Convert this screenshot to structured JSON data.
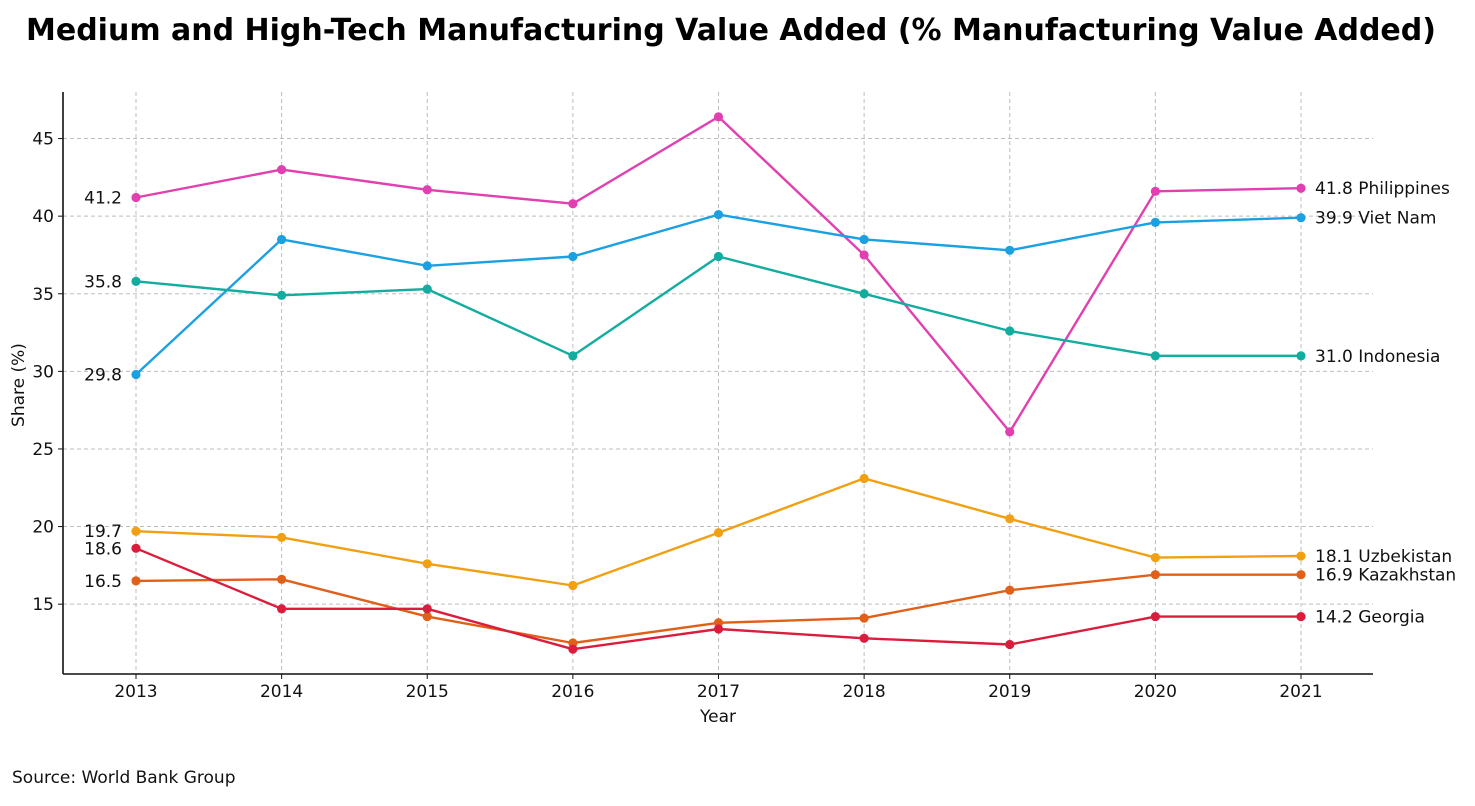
{
  "chart_data": {
    "type": "line",
    "title": "Medium and High-Tech Manufacturing Value Added (% Manufacturing Value Added)",
    "xlabel": "Year",
    "ylabel": "Share (%)",
    "x": [
      "2013",
      "2014",
      "2015",
      "2016",
      "2017",
      "2018",
      "2019",
      "2020",
      "2021"
    ],
    "ylim": [
      10.5,
      48
    ],
    "yticks": [
      15,
      20,
      25,
      30,
      35,
      40,
      45
    ],
    "grid": true,
    "legend": "none",
    "series": [
      {
        "name": "Philippines",
        "color": "#e040b0",
        "values": [
          41.2,
          43.0,
          41.7,
          40.8,
          46.4,
          37.5,
          26.1,
          41.6,
          41.8
        ],
        "start_label": "41.2",
        "end_label": "41.8 Philippines"
      },
      {
        "name": "Viet Nam",
        "color": "#1ba1e2",
        "values": [
          29.8,
          38.5,
          36.8,
          37.4,
          40.1,
          38.5,
          37.8,
          39.6,
          39.9
        ],
        "start_label": "29.8",
        "end_label": "39.9 Viet Nam"
      },
      {
        "name": "Indonesia",
        "color": "#12ad9f",
        "values": [
          35.8,
          34.9,
          35.3,
          31.0,
          37.4,
          35.0,
          32.6,
          31.0,
          31.0
        ],
        "start_label": "35.8",
        "end_label": "31.0 Indonesia"
      },
      {
        "name": "Uzbekistan",
        "color": "#f0a010",
        "values": [
          19.7,
          19.3,
          17.6,
          16.2,
          19.6,
          23.1,
          20.5,
          18.0,
          18.1
        ],
        "start_label": "19.7",
        "end_label": "18.1 Uzbekistan"
      },
      {
        "name": "Kazakhstan",
        "color": "#e0601a",
        "values": [
          16.5,
          16.6,
          14.2,
          12.5,
          13.8,
          14.1,
          15.9,
          16.9,
          16.9
        ],
        "start_label": "16.5",
        "end_label": "16.9 Kazakhstan"
      },
      {
        "name": "Georgia",
        "color": "#dc1c3c",
        "values": [
          18.6,
          14.7,
          14.7,
          12.1,
          13.4,
          12.8,
          12.4,
          14.2,
          14.2
        ],
        "start_label": "18.6",
        "end_label": "14.2 Georgia"
      }
    ],
    "source": "Source: World Bank Group"
  }
}
